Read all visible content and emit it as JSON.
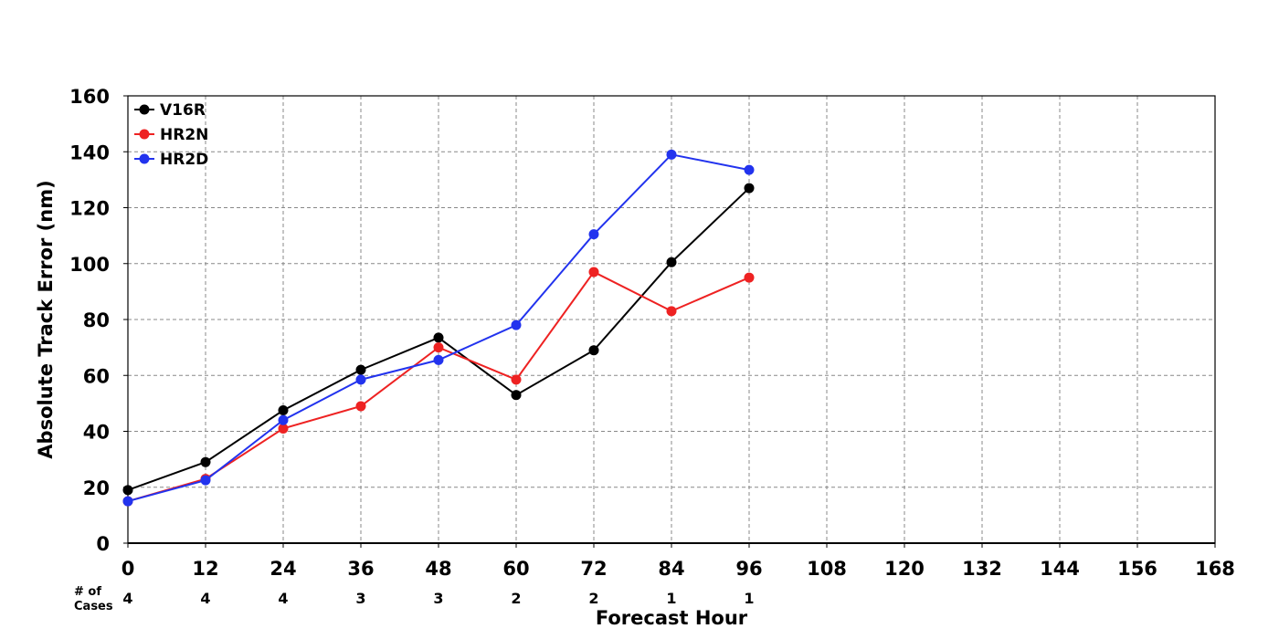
{
  "chart_data": {
    "type": "line",
    "title": "",
    "xlabel": "Forecast Hour",
    "ylabel": "Absolute Track Error (nm)",
    "xlim": [
      0,
      168
    ],
    "ylim": [
      0,
      160
    ],
    "x_ticks": [
      0,
      12,
      24,
      36,
      48,
      60,
      72,
      84,
      96,
      108,
      120,
      132,
      144,
      156,
      168
    ],
    "y_ticks": [
      0,
      20,
      40,
      60,
      80,
      100,
      120,
      140,
      160
    ],
    "grid": true,
    "legend_position": "top-left",
    "x": [
      0,
      12,
      24,
      36,
      48,
      60,
      72,
      84,
      96
    ],
    "series": [
      {
        "name": "V16R",
        "color": "#000000",
        "values": [
          19,
          29,
          47.5,
          62,
          73.5,
          53,
          69,
          100.5,
          127
        ]
      },
      {
        "name": "HR2N",
        "color": "#ee2222",
        "values": [
          15,
          23,
          41,
          49,
          70,
          58.5,
          97,
          83,
          95
        ]
      },
      {
        "name": "HR2D",
        "color": "#2233ee",
        "values": [
          15,
          22.5,
          44,
          58.5,
          65.5,
          78,
          110.5,
          139,
          133.5
        ]
      }
    ],
    "cases": {
      "label_line1": "# of",
      "label_line2": "Cases",
      "counts": [
        4,
        4,
        4,
        3,
        3,
        2,
        2,
        1,
        1
      ]
    }
  }
}
